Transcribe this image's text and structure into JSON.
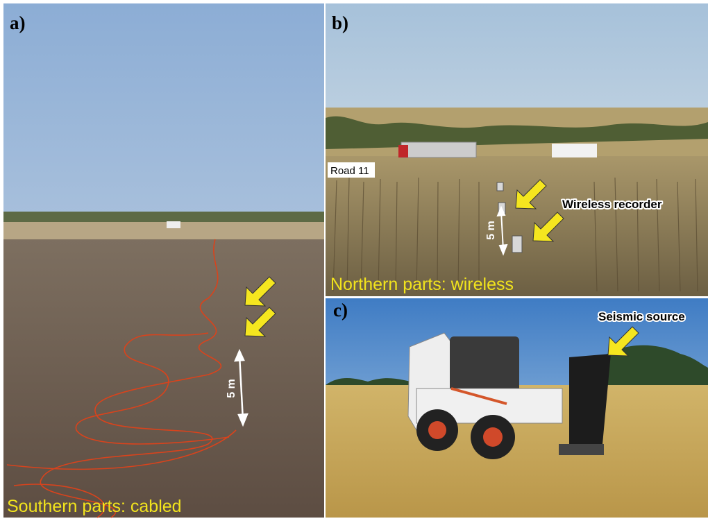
{
  "panels": [
    {
      "label": "a)",
      "caption": "Southern parts: cabled",
      "scale_label": "5 m"
    },
    {
      "label": "b)",
      "caption": "Northern parts: wireless",
      "road_label": "Road 11",
      "callout": "Wireless recorder",
      "scale_label": "5 m"
    },
    {
      "label": "c)",
      "callout": "Seismic source"
    }
  ]
}
